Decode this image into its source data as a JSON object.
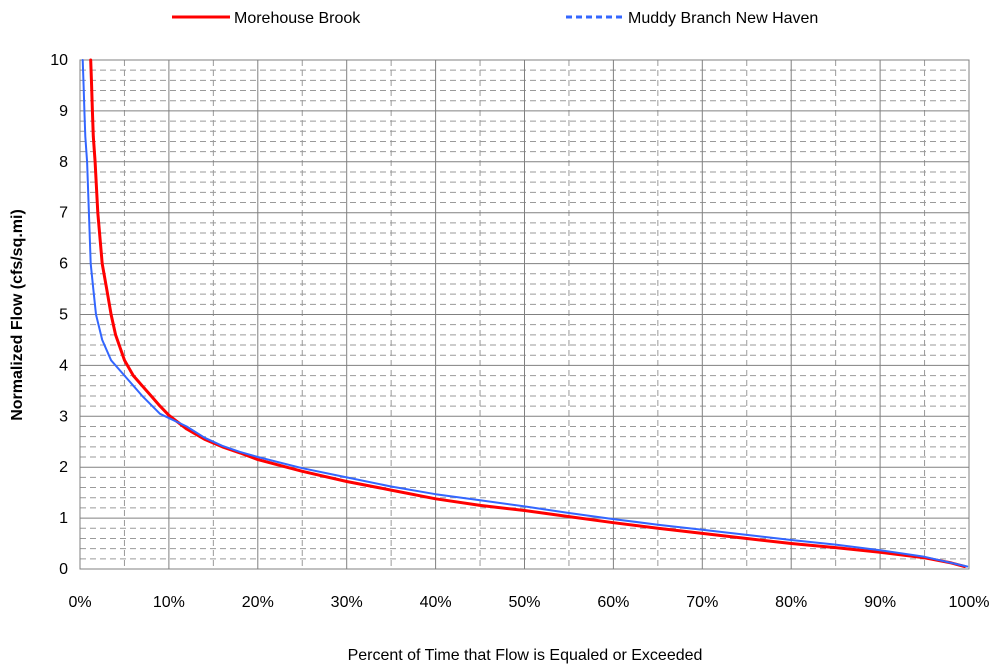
{
  "chart_data": {
    "type": "line",
    "title": "",
    "xlabel": "Percent of Time that Flow is Equaled or Exceeded",
    "ylabel": "Normalized  Flow (cfs/sq.mi)",
    "xlim": [
      0,
      100
    ],
    "ylim": [
      0,
      10
    ],
    "x_ticks": [
      "0%",
      "10%",
      "20%",
      "30%",
      "40%",
      "50%",
      "60%",
      "70%",
      "80%",
      "90%",
      "100%"
    ],
    "y_ticks": [
      "0",
      "1",
      "2",
      "3",
      "4",
      "5",
      "6",
      "7",
      "8",
      "9",
      "10"
    ],
    "grid": true,
    "legend_position": "top",
    "series": [
      {
        "name": "Morehouse Brook",
        "color": "#ff0000",
        "style": "solid",
        "points": [
          [
            1.2,
            10
          ],
          [
            1.3,
            9.5
          ],
          [
            1.4,
            9.0
          ],
          [
            1.5,
            8.5
          ],
          [
            1.7,
            8.0
          ],
          [
            2.0,
            7.0
          ],
          [
            2.5,
            6.0
          ],
          [
            3.0,
            5.5
          ],
          [
            3.5,
            5.0
          ],
          [
            4.0,
            4.6
          ],
          [
            5.0,
            4.1
          ],
          [
            6.0,
            3.8
          ],
          [
            7.0,
            3.6
          ],
          [
            8.0,
            3.4
          ],
          [
            9.0,
            3.2
          ],
          [
            10.0,
            3.02
          ],
          [
            12.0,
            2.75
          ],
          [
            14.0,
            2.55
          ],
          [
            16.0,
            2.4
          ],
          [
            18.0,
            2.28
          ],
          [
            20.0,
            2.15
          ],
          [
            25.0,
            1.92
          ],
          [
            30.0,
            1.72
          ],
          [
            35.0,
            1.55
          ],
          [
            40.0,
            1.38
          ],
          [
            45.0,
            1.25
          ],
          [
            50.0,
            1.15
          ],
          [
            55.0,
            1.03
          ],
          [
            60.0,
            0.91
          ],
          [
            65.0,
            0.8
          ],
          [
            70.0,
            0.7
          ],
          [
            75.0,
            0.6
          ],
          [
            80.0,
            0.5
          ],
          [
            85.0,
            0.42
          ],
          [
            90.0,
            0.33
          ],
          [
            95.0,
            0.22
          ],
          [
            98.0,
            0.12
          ],
          [
            99.5,
            0.05
          ]
        ]
      },
      {
        "name": "Muddy Branch New Haven",
        "color": "#3366ff",
        "style": "dashed",
        "points": [
          [
            0.3,
            10
          ],
          [
            0.4,
            9.5
          ],
          [
            0.5,
            9.0
          ],
          [
            0.6,
            8.5
          ],
          [
            0.8,
            8.0
          ],
          [
            1.0,
            7.0
          ],
          [
            1.2,
            6.0
          ],
          [
            1.5,
            5.5
          ],
          [
            1.8,
            5.0
          ],
          [
            2.5,
            4.5
          ],
          [
            3.5,
            4.1
          ],
          [
            5.0,
            3.8
          ],
          [
            7.0,
            3.4
          ],
          [
            9.0,
            3.05
          ],
          [
            12.0,
            2.8
          ],
          [
            14.0,
            2.58
          ],
          [
            16.0,
            2.42
          ],
          [
            18.0,
            2.3
          ],
          [
            20.0,
            2.2
          ],
          [
            25.0,
            1.98
          ],
          [
            30.0,
            1.8
          ],
          [
            35.0,
            1.62
          ],
          [
            40.0,
            1.47
          ],
          [
            45.0,
            1.35
          ],
          [
            50.0,
            1.23
          ],
          [
            55.0,
            1.1
          ],
          [
            60.0,
            0.98
          ],
          [
            65.0,
            0.87
          ],
          [
            70.0,
            0.77
          ],
          [
            75.0,
            0.67
          ],
          [
            80.0,
            0.57
          ],
          [
            85.0,
            0.48
          ],
          [
            90.0,
            0.37
          ],
          [
            95.0,
            0.24
          ],
          [
            98.0,
            0.12
          ],
          [
            99.8,
            0.05
          ]
        ]
      }
    ]
  }
}
